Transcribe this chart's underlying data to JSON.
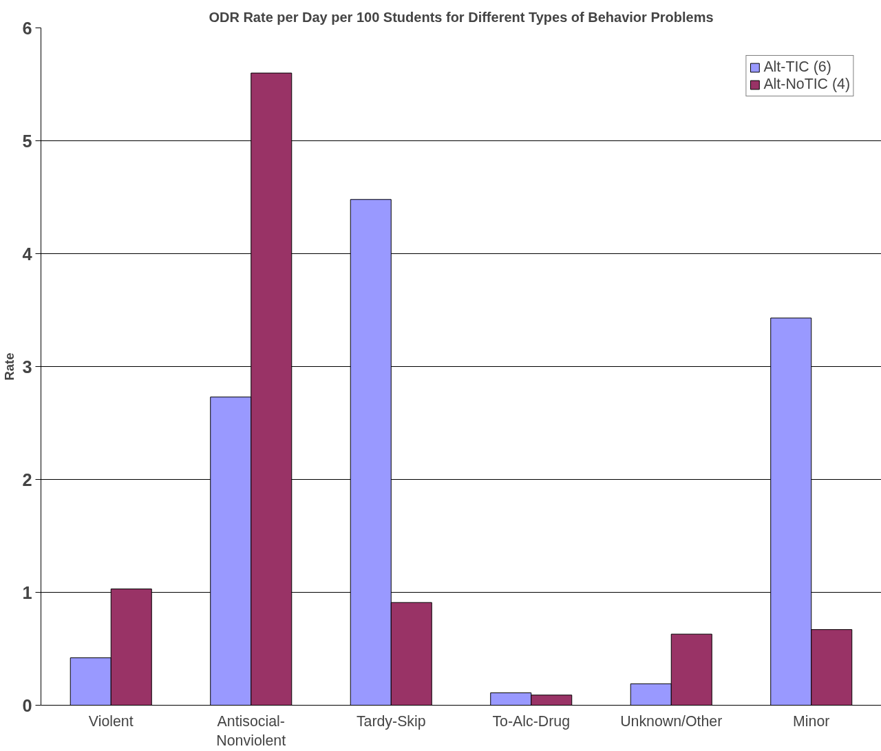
{
  "chart_data": {
    "type": "bar",
    "title": "ODR Rate per Day per 100 Students for Different Types of Behavior Problems",
    "ylabel": "Rate",
    "categories": [
      "Violent",
      "Antisocial-Nonviolent",
      "Tardy-Skip",
      "To-Alc-Drug",
      "Unknown/Other",
      "Minor"
    ],
    "series": [
      {
        "name": "Alt-TIC (6)",
        "color": "#9999ff",
        "values": [
          0.42,
          2.73,
          4.48,
          0.11,
          0.19,
          3.43
        ]
      },
      {
        "name": "Alt-NoTIC (4)",
        "color": "#993366",
        "values": [
          1.03,
          5.6,
          0.91,
          0.09,
          0.63,
          0.67
        ]
      }
    ],
    "ylim": [
      0,
      6
    ],
    "yticks": [
      0,
      1,
      2,
      3,
      4,
      5,
      6
    ],
    "grid": "y",
    "legend": "top right"
  }
}
